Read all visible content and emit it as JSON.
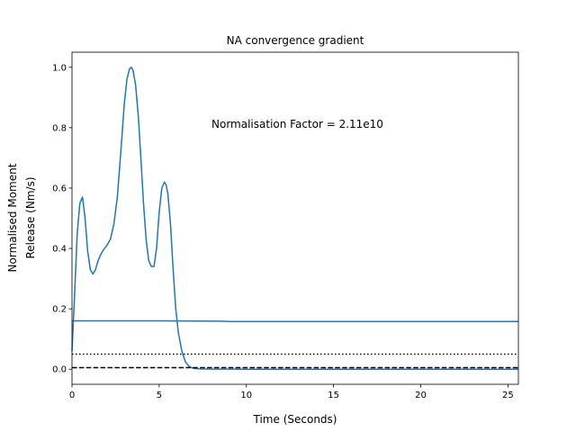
{
  "chart_data": {
    "type": "line",
    "title": "NA convergence gradient",
    "xlabel": "Time (Seconds)",
    "ylabel_lines": [
      "Normalised Moment",
      "Release (Nm/s)"
    ],
    "xlim": [
      0,
      25.6
    ],
    "ylim": [
      -0.05,
      1.05
    ],
    "xticks": [
      0,
      5,
      10,
      15,
      20,
      25
    ],
    "xtick_labels": [
      "0",
      "5",
      "10",
      "15",
      "20",
      "25"
    ],
    "yticks": [
      0.0,
      0.2,
      0.4,
      0.6,
      0.8,
      1.0
    ],
    "ytick_labels": [
      "0.0",
      "0.2",
      "0.4",
      "0.6",
      "0.8",
      "1.0"
    ],
    "grid": false,
    "annotation": {
      "text": "Normalisation Factor = 2.11e10",
      "x": 8.0,
      "y": 0.8
    },
    "series": [
      {
        "color": "#1f77b4",
        "style": "solid",
        "x": [
          0,
          0.15,
          0.3,
          0.45,
          0.6,
          0.75,
          0.9,
          1.05,
          1.2,
          1.35,
          1.5,
          1.65,
          1.8,
          2.0,
          2.2,
          2.4,
          2.6,
          2.8,
          3.0,
          3.15,
          3.3,
          3.4,
          3.5,
          3.65,
          3.8,
          3.95,
          4.1,
          4.25,
          4.4,
          4.55,
          4.7,
          4.85,
          5.0,
          5.15,
          5.3,
          5.4,
          5.5,
          5.65,
          5.8,
          5.95,
          6.1,
          6.3,
          6.5,
          6.7,
          6.9,
          7.1,
          7.3,
          7.6,
          8.0,
          9.0,
          10.0,
          12.0,
          15.0,
          20.0,
          25.6
        ],
        "y": [
          0.06,
          0.25,
          0.45,
          0.55,
          0.57,
          0.5,
          0.39,
          0.33,
          0.315,
          0.33,
          0.36,
          0.38,
          0.395,
          0.41,
          0.43,
          0.48,
          0.57,
          0.72,
          0.88,
          0.96,
          0.995,
          1.0,
          0.99,
          0.94,
          0.84,
          0.7,
          0.55,
          0.43,
          0.36,
          0.34,
          0.34,
          0.4,
          0.52,
          0.6,
          0.62,
          0.61,
          0.58,
          0.48,
          0.33,
          0.2,
          0.12,
          0.06,
          0.025,
          0.01,
          0.004,
          0.002,
          0.001,
          0.0005,
          0.0003,
          0.0002,
          0.0001,
          0.0,
          0.0,
          0.0,
          0.0
        ]
      },
      {
        "color": "#1f77b4",
        "style": "solid",
        "x": [
          0,
          5,
          8.5,
          9.0,
          10,
          15,
          20,
          25.6
        ],
        "y": [
          0.16,
          0.16,
          0.159,
          0.158,
          0.158,
          0.158,
          0.158,
          0.158
        ]
      },
      {
        "color": "#000000",
        "style": "dotted",
        "x": [
          0,
          25.6
        ],
        "y": [
          0.05,
          0.05
        ]
      },
      {
        "color": "#000000",
        "style": "dashed",
        "x": [
          0,
          25.6
        ],
        "y": [
          0.005,
          0.005
        ]
      }
    ]
  }
}
